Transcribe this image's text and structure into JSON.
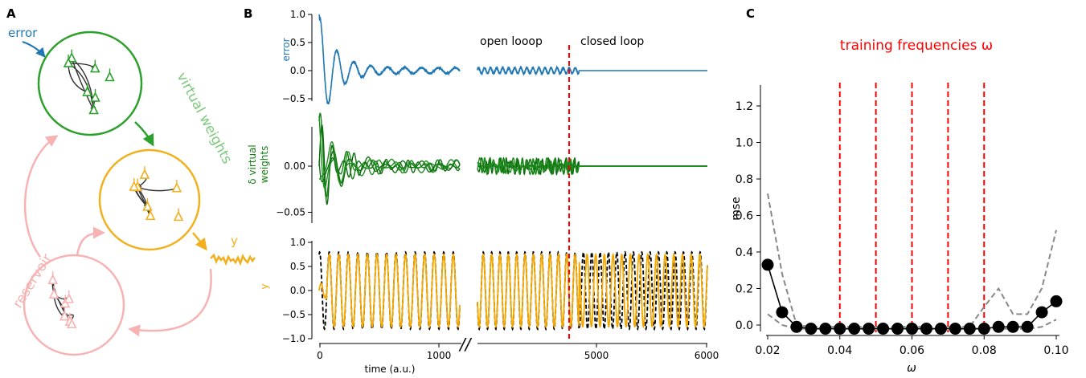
{
  "panels": {
    "a": "A",
    "b": "B",
    "c": "C"
  },
  "schematic": {
    "error_label": "error",
    "virtual_weights_label": "virtual weights",
    "reservoir_label": "reservoir",
    "output_label": "y",
    "colors": {
      "error": "#1f77b4",
      "virtual": "#2ca02c",
      "output": "#f2b01e",
      "reservoir": "#f7b3b3",
      "neuron_edges": "#333333"
    }
  },
  "panel_b": {
    "annotations": {
      "open_loop": "open looop",
      "closed_loop": "closed loop"
    },
    "switch_time": 4800,
    "axis_break_mark": "//",
    "xlabel": "time (a.u.)",
    "x_ticks": [
      "0",
      "1000",
      "5000",
      "6000"
    ],
    "colors": {
      "error": "#1f77b4",
      "weights": "#137c13",
      "output": "#f5a800",
      "target": "#000000",
      "switch": "#ff0000"
    }
  },
  "chart_data": [
    {
      "type": "line",
      "ylabel": "error",
      "ylim": [
        -0.6,
        1.0
      ],
      "y_ticks": [
        "1.0",
        "0.5",
        "0.0",
        "−0.5"
      ],
      "x_ranges": [
        [
          0,
          1150
        ],
        [
          3850,
          6000
        ]
      ],
      "series": [
        {
          "description": "damped oscillation settling near 0 during training; flat at 0 after closed loop",
          "x": [
            0,
            20,
            50,
            80,
            120,
            170,
            230,
            300,
            400,
            500,
            700,
            900,
            1150,
            3850,
            4800,
            6000
          ],
          "values": [
            1.0,
            0.85,
            -0.6,
            0.35,
            -0.4,
            0.25,
            -0.2,
            0.15,
            -0.1,
            0.07,
            -0.05,
            0.04,
            0.02,
            0.04,
            0.0,
            0.0
          ]
        }
      ]
    },
    {
      "type": "line",
      "ylabel": "δ virtual weights",
      "ylim": [
        -0.06,
        0.04
      ],
      "y_ticks": [
        "0.00",
        "−0.05"
      ],
      "x_ranges": [
        [
          0,
          1150
        ],
        [
          3850,
          6000
        ]
      ],
      "series": [
        {
          "description": "many overlapping oscillating weight changes, envelope decaying, then flat at 0",
          "envelope_x": [
            0,
            100,
            300,
            600,
            1150,
            3850,
            4800,
            6000
          ],
          "envelope": [
            0.058,
            0.04,
            0.02,
            0.012,
            0.008,
            0.01,
            0.0,
            0.0
          ]
        }
      ]
    },
    {
      "type": "line",
      "ylabel": "y",
      "ylim": [
        -1.0,
        1.0
      ],
      "y_ticks": [
        "1.0",
        "0.5",
        "0.0",
        "−0.5",
        "−1.0"
      ],
      "x_ranges": [
        [
          0,
          1150
        ],
        [
          3850,
          6000
        ]
      ],
      "series": [
        {
          "name": "",
          "color": "output",
          "description": "network output, sinusoid amplitude ~0.75"
        },
        {
          "name": "",
          "color": "target",
          "style": "dashed",
          "description": "target sinusoid amplitude ~0.8"
        }
      ],
      "period": 78
    },
    {
      "type": "line",
      "title": "training frequencies ω",
      "xlabel": "ω",
      "ylabel": "mse",
      "xlim": [
        0.017,
        0.103
      ],
      "ylim": [
        -0.02,
        1.2
      ],
      "x_ticks": [
        0.02,
        0.04,
        0.06,
        0.08,
        0.1
      ],
      "y_ticks": [
        0.0,
        0.2,
        0.4,
        0.6,
        0.8,
        1.0,
        1.2
      ],
      "training_frequencies": [
        0.04,
        0.05,
        0.06,
        0.07,
        0.08
      ],
      "series": [
        {
          "name": "",
          "style": "mean",
          "x": [
            0.02,
            0.024,
            0.028,
            0.032,
            0.036,
            0.04,
            0.044,
            0.048,
            0.052,
            0.056,
            0.06,
            0.064,
            0.068,
            0.072,
            0.076,
            0.08,
            0.084,
            0.088,
            0.092,
            0.096,
            0.1
          ],
          "values": [
            0.33,
            0.07,
            -0.01,
            -0.02,
            -0.02,
            -0.02,
            -0.02,
            -0.02,
            -0.02,
            -0.02,
            -0.02,
            -0.02,
            -0.02,
            -0.02,
            -0.02,
            -0.02,
            -0.01,
            -0.01,
            -0.01,
            0.07,
            0.13
          ]
        },
        {
          "name": "",
          "style": "upper-dashed",
          "x": [
            0.02,
            0.024,
            0.028,
            0.032,
            0.036,
            0.04,
            0.044,
            0.048,
            0.052,
            0.056,
            0.06,
            0.064,
            0.068,
            0.072,
            0.076,
            0.08,
            0.084,
            0.088,
            0.092,
            0.096,
            0.1
          ],
          "values": [
            0.72,
            0.28,
            0.0,
            -0.01,
            -0.01,
            -0.01,
            -0.01,
            -0.01,
            -0.01,
            -0.01,
            -0.01,
            -0.01,
            -0.01,
            -0.01,
            -0.01,
            0.1,
            0.2,
            0.06,
            0.06,
            0.2,
            0.52
          ]
        },
        {
          "name": "",
          "style": "lower-dashed",
          "x": [
            0.02,
            0.024,
            0.028,
            0.032,
            0.036,
            0.04,
            0.044,
            0.048,
            0.052,
            0.056,
            0.06,
            0.064,
            0.068,
            0.072,
            0.076,
            0.08,
            0.084,
            0.088,
            0.092,
            0.096,
            0.1
          ],
          "values": [
            0.06,
            0.0,
            -0.02,
            -0.02,
            -0.02,
            -0.02,
            -0.02,
            -0.02,
            -0.02,
            -0.02,
            -0.02,
            -0.02,
            -0.02,
            -0.02,
            -0.02,
            -0.02,
            -0.02,
            -0.02,
            -0.02,
            -0.01,
            0.03
          ]
        }
      ]
    }
  ]
}
